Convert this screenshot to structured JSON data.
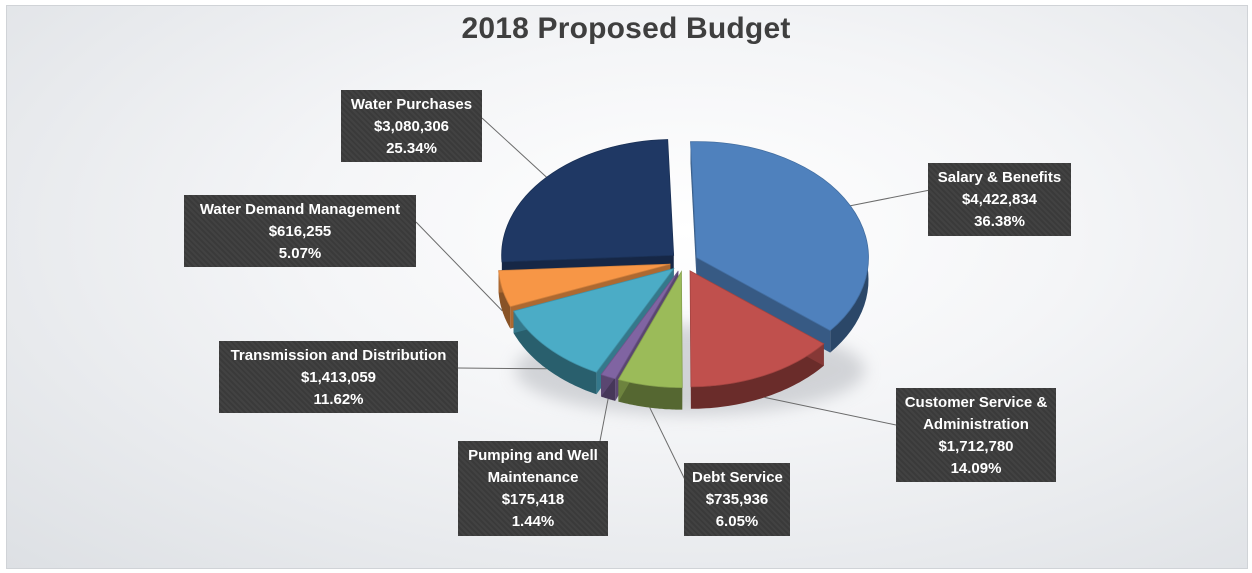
{
  "chart_data": {
    "type": "pie",
    "title": "2018 Proposed Budget",
    "slices": [
      {
        "label": "Salary & Benefits",
        "amount": "$4,422,834",
        "percent_label": "36.38%",
        "value": 36.38,
        "color": "#4f81bd"
      },
      {
        "label": "Customer Service & Administration",
        "label_lines": [
          "Customer Service &",
          "Administration"
        ],
        "amount": "$1,712,780",
        "percent_label": "14.09%",
        "value": 14.09,
        "color": "#c0504d"
      },
      {
        "label": "Debt Service",
        "amount": "$735,936",
        "percent_label": "6.05%",
        "value": 6.05,
        "color": "#9bbb59"
      },
      {
        "label": "Pumping and Well Maintenance",
        "label_lines": [
          "Pumping and Well",
          "Maintenance"
        ],
        "amount": "$175,418",
        "percent_label": "1.44%",
        "value": 1.44,
        "color": "#8064a2"
      },
      {
        "label": "Transmission and Distribution",
        "amount": "$1,413,059",
        "percent_label": "11.62%",
        "value": 11.62,
        "color": "#4bacc6"
      },
      {
        "label": "Water Demand Management",
        "amount": "$616,255",
        "percent_label": "5.07%",
        "value": 5.07,
        "color": "#f79646"
      },
      {
        "label": "Water Purchases",
        "amount": "$3,080,306",
        "percent_label": "25.34%",
        "value": 25.34,
        "color": "#1f3864"
      }
    ]
  }
}
